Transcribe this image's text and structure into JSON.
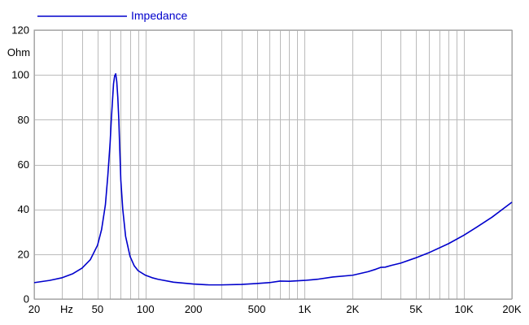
{
  "chart_data": {
    "type": "line",
    "title": "",
    "xlabel": "",
    "ylabel": "Ohm",
    "x_unit_label": "Hz",
    "x_scale": "log",
    "xlim": [
      20,
      20000
    ],
    "ylim": [
      0,
      120
    ],
    "grid": true,
    "legend": "top-left",
    "y_ticks": [
      0,
      20,
      40,
      60,
      80,
      100,
      120
    ],
    "x_major_ticks": [
      {
        "value": 20,
        "label": "20"
      },
      {
        "value": 50,
        "label": "50"
      },
      {
        "value": 100,
        "label": "100"
      },
      {
        "value": 200,
        "label": "200"
      },
      {
        "value": 500,
        "label": "500"
      },
      {
        "value": 1000,
        "label": "1K"
      },
      {
        "value": 2000,
        "label": "2K"
      },
      {
        "value": 5000,
        "label": "5K"
      },
      {
        "value": 10000,
        "label": "10K"
      },
      {
        "value": 20000,
        "label": "20K"
      }
    ],
    "series": [
      {
        "name": "Impedance",
        "color": "#0000cc",
        "x": [
          20,
          25,
          30,
          35,
          40,
          45,
          50,
          53,
          56,
          58,
          60,
          61,
          62,
          63,
          64,
          65,
          66,
          67,
          68,
          69,
          70,
          72,
          75,
          80,
          85,
          90,
          100,
          110,
          120,
          150,
          200,
          250,
          300,
          400,
          500,
          600,
          700,
          800,
          1000,
          1200,
          1500,
          2000,
          2500,
          2800,
          3000,
          3200,
          3500,
          4000,
          5000,
          6000,
          8000,
          10000,
          12000,
          15000,
          20000
        ],
        "y": [
          7.3,
          8.3,
          9.5,
          11.3,
          13.8,
          17.5,
          24,
          31,
          42,
          55,
          70,
          80,
          88,
          96,
          99.5,
          100.5,
          97,
          90,
          80,
          66,
          53,
          40,
          28,
          19,
          14.8,
          12.6,
          10.6,
          9.5,
          8.8,
          7.5,
          6.7,
          6.3,
          6.3,
          6.5,
          6.9,
          7.3,
          8.0,
          7.9,
          8.3,
          8.8,
          9.8,
          10.6,
          12.2,
          13.3,
          14.1,
          14.2,
          15.0,
          16.0,
          18.4,
          20.6,
          24.7,
          28.5,
          32.0,
          36.5,
          43.2
        ]
      }
    ]
  }
}
